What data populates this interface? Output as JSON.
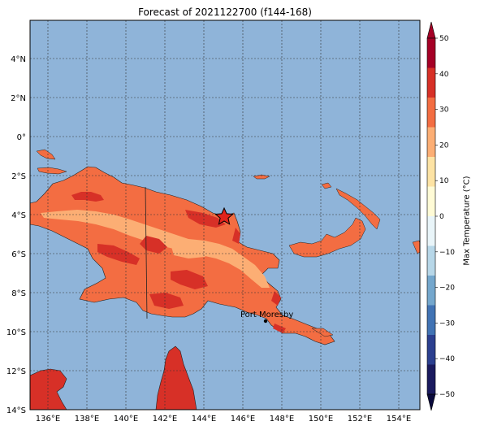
{
  "title": "Forecast of 2021122700 (f144-168)",
  "map": {
    "lon_ticks": [
      "136°E",
      "138°E",
      "140°E",
      "142°E",
      "144°E",
      "146°E",
      "148°E",
      "150°E",
      "152°E",
      "154°E"
    ],
    "lat_ticks": [
      "4°N",
      "2°N",
      "0°",
      "2°S",
      "4°S",
      "6°S",
      "8°S",
      "10°S",
      "12°S",
      "14°S"
    ],
    "ocean_color": "#8fb4d9",
    "marker": {
      "type": "star",
      "lon": 145.0,
      "lat": -4.1,
      "color": "#e0231c"
    },
    "city": {
      "label": "Port Moresby",
      "lon": 147.2,
      "lat": -9.45
    }
  },
  "colorbar": {
    "label": "Max Temperature (°C)",
    "tick_labels": [
      "50",
      "40",
      "30",
      "20",
      "10",
      "0",
      "−10",
      "−20",
      "−30",
      "−40",
      "−50"
    ],
    "colors": [
      "#1a1a5e",
      "#2b3f8f",
      "#4173b4",
      "#74a7cd",
      "#b7d7e8",
      "#e9f5f9",
      "#fffbd6",
      "#fde3a4",
      "#fcae74",
      "#f36d42",
      "#d73027",
      "#a50026"
    ]
  }
}
